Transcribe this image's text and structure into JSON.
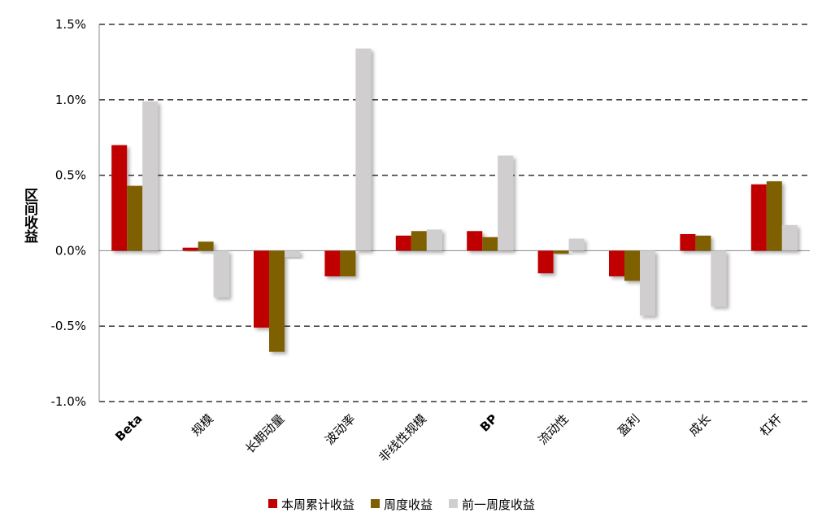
{
  "chart_data": {
    "type": "bar",
    "y_label": "区间收益",
    "categories": [
      "Beta",
      "规模",
      "长期动量",
      "波动率",
      "非线性规模",
      "BP",
      "流动性",
      "盈利",
      "成长",
      "杠杆"
    ],
    "series": [
      {
        "name": "本周累计收益",
        "color": "#c00000",
        "values": [
          0.7,
          0.02,
          -0.51,
          -0.17,
          0.1,
          0.13,
          -0.15,
          -0.17,
          0.11,
          0.44
        ]
      },
      {
        "name": "周度收益",
        "color": "#7f6000",
        "values": [
          0.43,
          0.06,
          -0.67,
          -0.17,
          0.13,
          0.09,
          -0.02,
          -0.2,
          0.1,
          0.46
        ]
      },
      {
        "name": "前一周度收益",
        "color": "#d0cece",
        "values": [
          0.99,
          -0.31,
          -0.04,
          1.34,
          0.14,
          0.63,
          0.08,
          -0.43,
          -0.37,
          0.17
        ]
      }
    ],
    "ylim": [
      -1.0,
      1.5
    ],
    "yticks": [
      {
        "value": -1.0,
        "label": "-1.0%"
      },
      {
        "value": -0.5,
        "label": "-0.5%"
      },
      {
        "value": 0,
        "label": "0.0%"
      },
      {
        "value": 0.5,
        "label": "0.5%"
      },
      {
        "value": 1.0,
        "label": "1.0%"
      },
      {
        "value": 1.5,
        "label": "1.5%"
      }
    ],
    "grid": true
  }
}
